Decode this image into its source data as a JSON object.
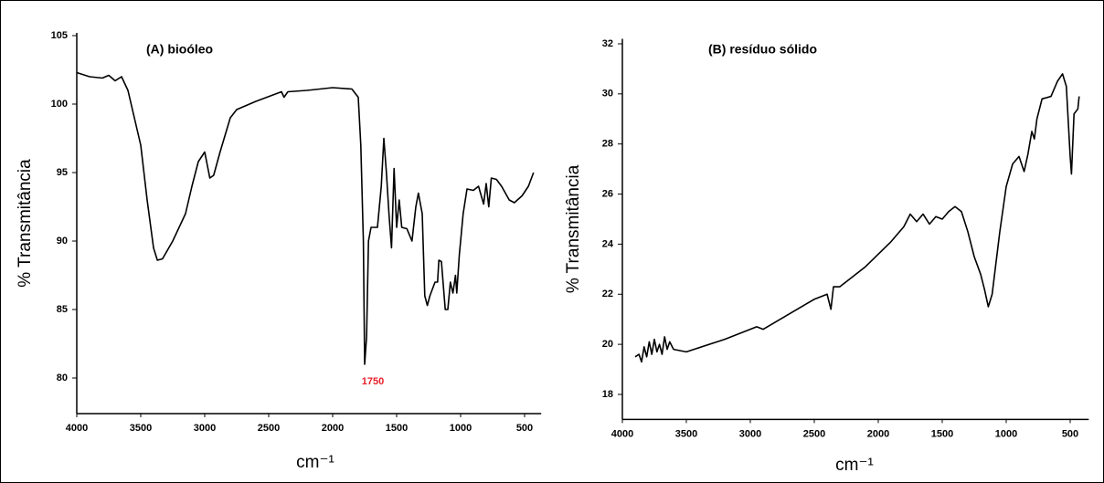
{
  "chart_data": [
    {
      "type": "line",
      "title": "(A) bioóleo",
      "x_label": "cm⁻¹",
      "y_label": "% Transmitância",
      "xlim": [
        4000,
        370
      ],
      "ylim": [
        77.4,
        105.2
      ],
      "xticks": [
        4000,
        3500,
        3000,
        2500,
        2000,
        1500,
        1000,
        500
      ],
      "yticks": [
        80,
        85,
        90,
        95,
        100,
        105
      ],
      "annotations": [
        {
          "text": "1750",
          "color": "#e8202a"
        }
      ],
      "x": [
        4000,
        3900,
        3800,
        3750,
        3700,
        3650,
        3600,
        3550,
        3500,
        3450,
        3400,
        3370,
        3330,
        3250,
        3150,
        3100,
        3050,
        3000,
        2960,
        2930,
        2880,
        2800,
        2750,
        2600,
        2400,
        2380,
        2350,
        2200,
        2000,
        1850,
        1800,
        1780,
        1760,
        1750,
        1735,
        1720,
        1700,
        1650,
        1620,
        1600,
        1580,
        1560,
        1540,
        1520,
        1500,
        1480,
        1460,
        1420,
        1380,
        1350,
        1330,
        1300,
        1280,
        1260,
        1240,
        1200,
        1180,
        1170,
        1150,
        1120,
        1100,
        1080,
        1060,
        1040,
        1030,
        1010,
        980,
        950,
        900,
        860,
        820,
        800,
        780,
        760,
        720,
        680,
        620,
        580,
        520,
        470,
        430
      ],
      "series": [
        {
          "color": "#000000",
          "values": [
            102.3,
            102.0,
            101.9,
            102.1,
            101.7,
            102.0,
            101.0,
            99,
            97,
            93,
            89.5,
            88.6,
            88.7,
            90,
            92,
            94,
            95.8,
            96.5,
            94.6,
            94.8,
            96.5,
            99,
            99.6,
            100.2,
            100.9,
            100.5,
            100.9,
            101.0,
            101.2,
            101.1,
            100.5,
            97,
            90,
            81,
            83,
            90,
            91,
            91,
            94,
            97.5,
            95,
            92,
            89.5,
            95.3,
            91,
            93,
            91,
            90.9,
            90,
            92.5,
            93.5,
            92,
            86,
            85.3,
            86,
            87,
            87,
            88.6,
            88.5,
            85,
            85,
            87,
            86.2,
            87.5,
            86.2,
            89,
            92,
            93.8,
            93.7,
            94,
            92.7,
            94.2,
            92.5,
            94.6,
            94.5,
            94,
            93,
            92.8,
            93.3,
            94,
            95
          ]
        }
      ]
    },
    {
      "type": "line",
      "title": "(B) resíduo sólido",
      "x_label": "cm⁻¹",
      "y_label": "% Transmitância",
      "xlim": [
        4000,
        355
      ],
      "ylim": [
        17.0,
        32.2
      ],
      "xticks": [
        4000,
        3500,
        3000,
        2500,
        2000,
        1500,
        1000,
        500
      ],
      "yticks": [
        18,
        20,
        22,
        24,
        26,
        28,
        30,
        32
      ],
      "x": [
        3900,
        3870,
        3850,
        3830,
        3810,
        3790,
        3770,
        3750,
        3730,
        3710,
        3690,
        3670,
        3650,
        3630,
        3600,
        3500,
        3200,
        3000,
        2950,
        2900,
        2700,
        2500,
        2400,
        2370,
        2350,
        2300,
        2100,
        1900,
        1800,
        1750,
        1700,
        1650,
        1600,
        1550,
        1500,
        1450,
        1400,
        1350,
        1300,
        1250,
        1200,
        1170,
        1140,
        1110,
        1050,
        1000,
        950,
        900,
        860,
        830,
        800,
        780,
        760,
        720,
        650,
        600,
        560,
        530,
        500,
        490,
        470,
        440,
        430
      ],
      "series": [
        {
          "color": "#000000",
          "values": [
            19.5,
            19.6,
            19.3,
            19.9,
            19.5,
            20.1,
            19.6,
            20.2,
            19.7,
            20.0,
            19.6,
            20.3,
            19.8,
            20.1,
            19.8,
            19.7,
            20.2,
            20.6,
            20.7,
            20.6,
            21.2,
            21.8,
            22.0,
            21.4,
            22.3,
            22.3,
            23.1,
            24.1,
            24.7,
            25.2,
            24.9,
            25.2,
            24.8,
            25.1,
            25.0,
            25.3,
            25.5,
            25.3,
            24.5,
            23.5,
            22.8,
            22.2,
            21.5,
            22.0,
            24.5,
            26.3,
            27.2,
            27.5,
            26.9,
            27.6,
            28.5,
            28.2,
            29.0,
            29.8,
            29.9,
            30.5,
            30.8,
            30.3,
            27.5,
            26.8,
            29.2,
            29.4,
            29.9
          ]
        }
      ]
    }
  ]
}
